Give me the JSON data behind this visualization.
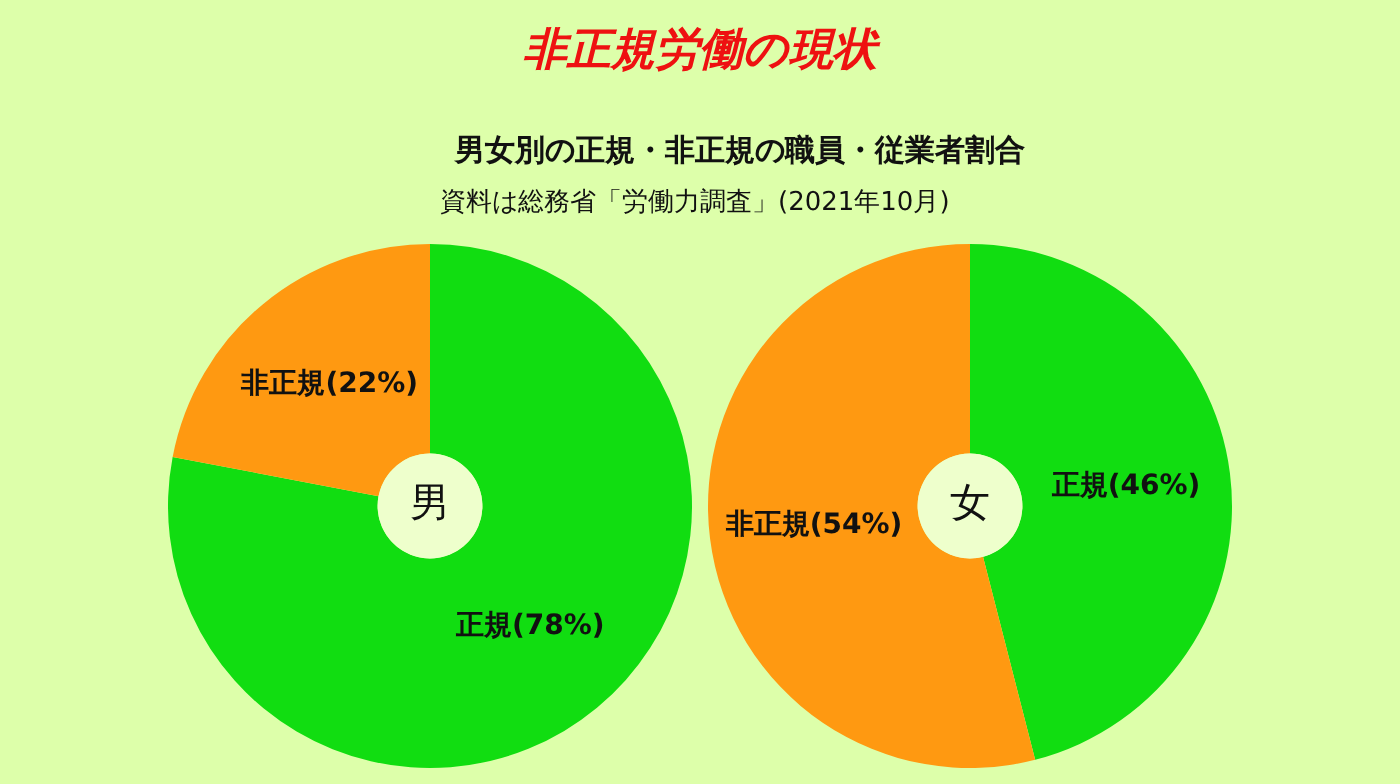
{
  "chart_data": [
    {
      "type": "other",
      "title": "非正規労働の現状",
      "subtitle": "男女別の正規・非正規の職員・従業者割合",
      "annotations": [
        "資料は総務省「労働力調査」(2021年10月)"
      ]
    },
    {
      "type": "donut",
      "title": "男",
      "categories": [
        "正規",
        "非正規"
      ],
      "values": [
        78,
        22
      ],
      "colors": [
        "#11dd11",
        "#ff9911"
      ],
      "value_labels": [
        "(78%)",
        "(22%)"
      ],
      "legend": false
    },
    {
      "type": "donut",
      "title": "女",
      "categories": [
        "正規",
        "非正規"
      ],
      "values": [
        46,
        54
      ],
      "colors": [
        "#11dd11",
        "#ff9911"
      ],
      "value_labels": [
        "(46%)",
        "(54%)"
      ],
      "legend": false
    }
  ]
}
